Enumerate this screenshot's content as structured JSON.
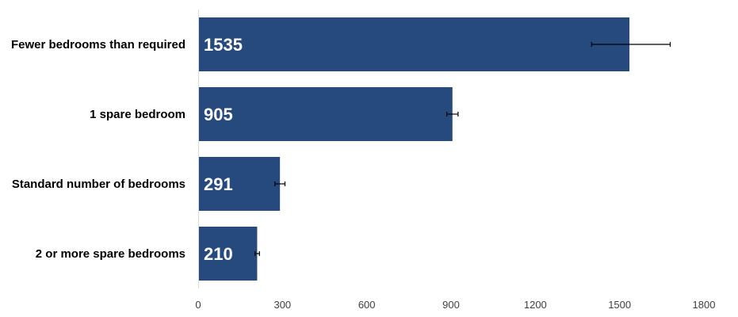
{
  "chart_data": {
    "type": "bar",
    "orientation": "horizontal",
    "title": "",
    "xlabel": "",
    "ylabel": "",
    "categories": [
      "Fewer bedrooms than required",
      "1 spare bedroom",
      "Standard number of bedrooms",
      "2 or more spare bedrooms"
    ],
    "values": [
      1535,
      905,
      291,
      210
    ],
    "error_bars": [
      {
        "low": 1400,
        "high": 1680
      },
      {
        "low": 885,
        "high": 925
      },
      {
        "low": 273,
        "high": 309
      },
      {
        "low": 202,
        "high": 218
      }
    ],
    "data_labels": [
      "1535",
      "905",
      "291",
      "210"
    ],
    "xlim": [
      0,
      1800
    ],
    "x_ticks": [
      0,
      300,
      600,
      900,
      1200,
      1500,
      1800
    ],
    "x_tick_labels": [
      "0",
      "300",
      "600",
      "900",
      "1200",
      "1500",
      "1800"
    ],
    "grid": false,
    "legend": "none",
    "colors": {
      "bar": "#264a7e",
      "axis": "#d9d9d9",
      "error_bar": "#000000",
      "data_label": "#ffffff"
    }
  }
}
